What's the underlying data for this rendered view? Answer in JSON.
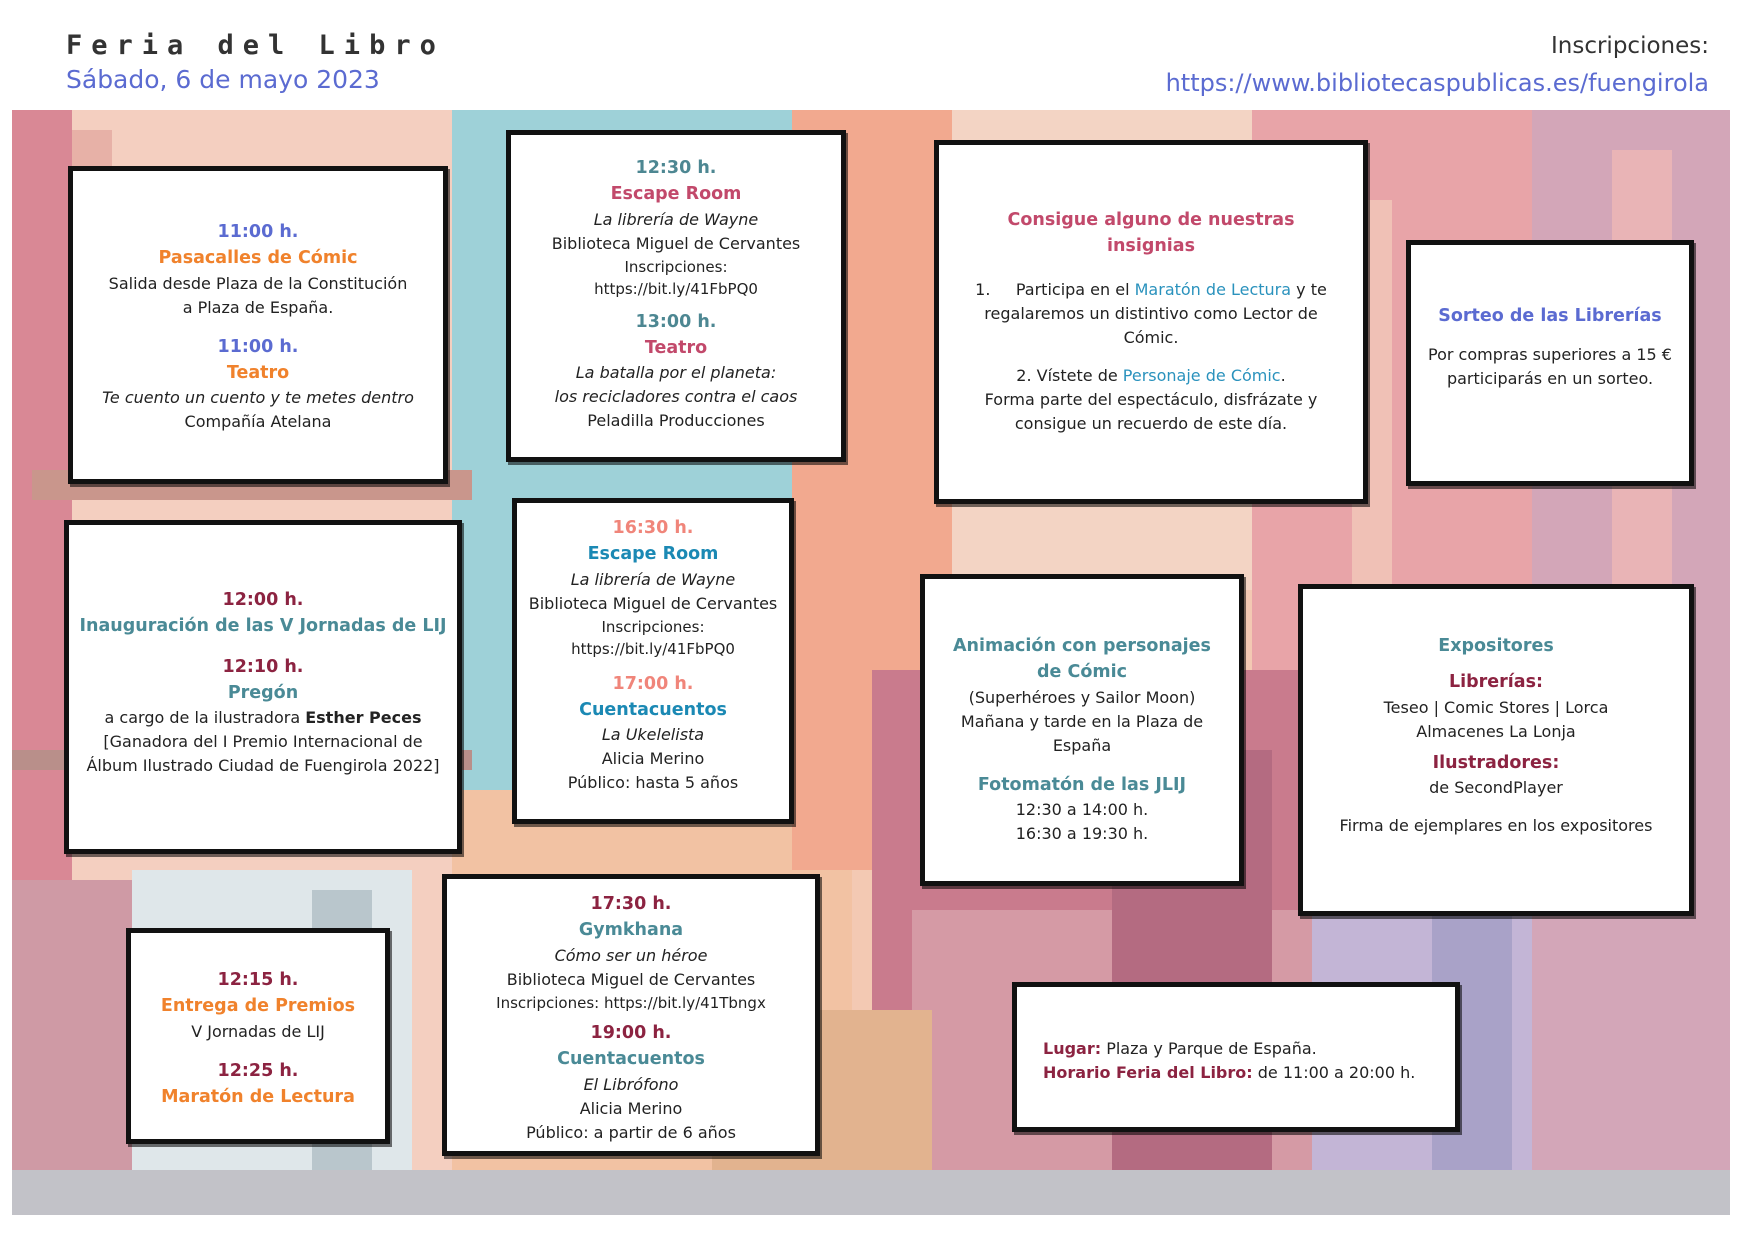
{
  "header": {
    "title": "Feria del Libro",
    "date": "Sábado, 6 de mayo 2023",
    "registration_label": "Inscripciones:",
    "registration_url": "https://www.bibliotecaspublicas.es/fuengirola"
  },
  "box1": {
    "time1": "11:00 h.",
    "event1": "Pasacalles de Cómic",
    "desc1a": "Salida desde Plaza de la Constitución",
    "desc1b": "a Plaza de España.",
    "time2": "11:00 h.",
    "event2": "Teatro",
    "desc2a": "Te cuento un cuento y te metes dentro",
    "desc2b": "Compañía Atelana"
  },
  "box2": {
    "time1": "12:30 h.",
    "event1": "Escape Room",
    "title1": "La librería de Wayne",
    "place1": "Biblioteca Miguel de Cervantes",
    "insc1": "Inscripciones:",
    "url1": "https://bit.ly/41FbPQ0",
    "time2": "13:00 h.",
    "event2": "Teatro",
    "title2a": "La batalla por el planeta:",
    "title2b": "los recicladores contra el caos",
    "company2": "Peladilla Producciones"
  },
  "box3": {
    "heading": "Consigue alguno de nuestras insignias",
    "item1_num": "1.",
    "item1_pre": "Participa en el ",
    "item1_link": "Maratón de Lectura",
    "item1_post": " y te",
    "item1_line2": "regalaremos un distintivo como Lector de",
    "item1_line3": "Cómic.",
    "item2_pre": "2. Vístete de ",
    "item2_link": "Personaje de Cómic",
    "item2_post": ".",
    "item2_line2": "Forma parte del espectáculo, disfrázate y",
    "item2_line3": "consigue un recuerdo de este día."
  },
  "box4": {
    "heading": "Sorteo de las Librerías",
    "line1": "Por compras superiores a 15 €",
    "line2": "participarás en un sorteo."
  },
  "box5": {
    "time1": "12:00 h.",
    "event1": "Inauguración de las V Jornadas de LIJ",
    "time2": "12:10 h.",
    "event2": "Pregón",
    "line_pre": "a cargo de la ilustradora ",
    "illustrator": "Esther Peces",
    "line2": "[Ganadora del I Premio Internacional de",
    "line3": "Álbum Ilustrado Ciudad de Fuengirola 2022]"
  },
  "box6": {
    "time1": "16:30 h.",
    "event1": "Escape Room",
    "title1": "La librería de Wayne",
    "place1": "Biblioteca Miguel de Cervantes",
    "insc1": "Inscripciones:",
    "url1": "https://bit.ly/41FbPQ0",
    "time2": "17:00 h.",
    "event2": "Cuentacuentos",
    "title2": "La Ukelelista",
    "name2": "Alicia Merino",
    "audience2": "Público: hasta 5 años"
  },
  "box7": {
    "heading_a": "Animación con personajes",
    "heading_b": "de Cómic",
    "line1": "(Superhéroes y Sailor Moon)",
    "line2": "Mañana y tarde en la Plaza de",
    "line3": "España",
    "heading2": "Fotomatón de las JLIJ",
    "slot1": "12:30 a 14:00 h.",
    "slot2": "16:30 a 19:30 h."
  },
  "box8": {
    "heading": "Expositores",
    "sub1": "Librerías:",
    "line1": "Teseo | Comic Stores | Lorca",
    "line2": "Almacenes La Lonja",
    "sub2": "Ilustradores:",
    "line3": "de SecondPlayer",
    "line4": "Firma de ejemplares en los expositores"
  },
  "box9": {
    "time1": "12:15 h.",
    "event1": "Entrega de Premios",
    "desc1": "V Jornadas de LIJ",
    "time2": "12:25 h.",
    "event2": "Maratón de Lectura"
  },
  "box10": {
    "time1": "17:30 h.",
    "event1": "Gymkhana",
    "title1": "Cómo ser un héroe",
    "place1": "Biblioteca Miguel de Cervantes",
    "insc1": "Inscripciones: https://bit.ly/41Tbngx",
    "time2": "19:00 h.",
    "event2": "Cuentacuentos",
    "title2": "El Librófono",
    "name2": "Alicia Merino",
    "audience2": "Público: a partir de 6 años"
  },
  "box11": {
    "label1": "Lugar:",
    "value1": " Plaza y Parque de España.",
    "label2": "Horario Feria del Libro:",
    "value2": " de 11:00 a 20:00 h."
  },
  "colors": {
    "accent_blue": "#5b6bd1",
    "orange": "#f0822c",
    "teal": "#4a8a96",
    "pink": "#c2496b",
    "wine": "#8c2341",
    "cyan": "#1b89b4"
  }
}
